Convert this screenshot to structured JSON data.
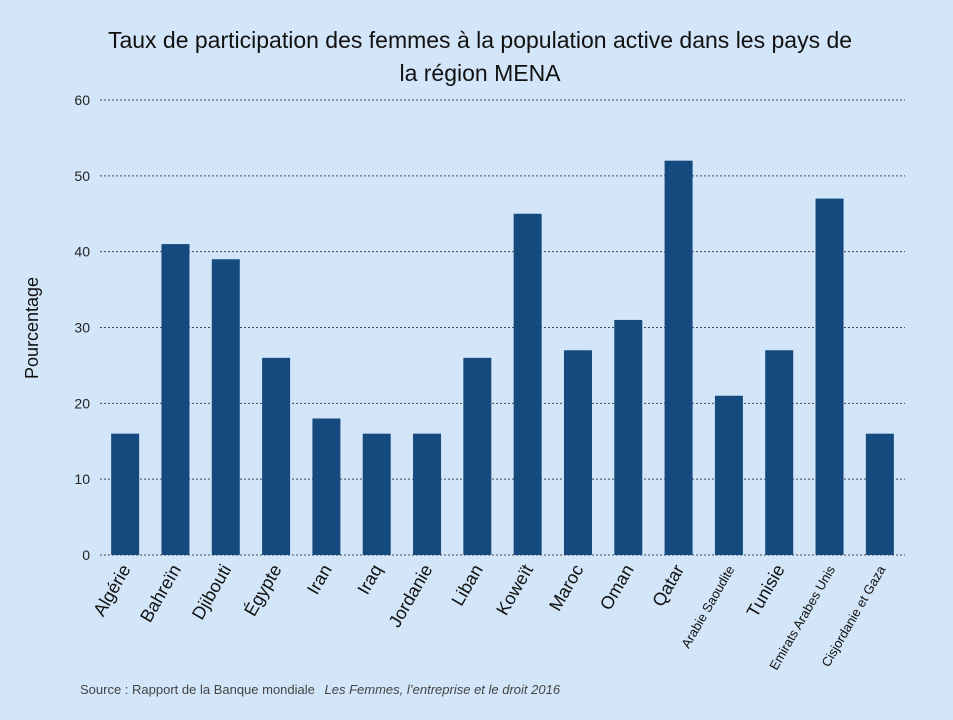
{
  "chart_data": {
    "type": "bar",
    "title_lines": [
      "Taux de participation des femmes à la population active dans les pays de",
      "la région MENA"
    ],
    "ylabel": "Pourcentage",
    "xlabel": "",
    "categories": [
      "Algérie",
      "Bahreïn",
      "Djibouti",
      "Égypte",
      "Iran",
      "Iraq",
      "Jordanie",
      "Liban",
      "Koweït",
      "Maroc",
      "Oman",
      "Qatar",
      "Arabie Saoudite",
      "Tunisie",
      "Emirats Arabes Unis",
      "Cisjordanie et Gaza"
    ],
    "values": [
      16,
      41,
      39,
      26,
      18,
      16,
      16,
      26,
      45,
      27,
      31,
      52,
      21,
      27,
      47,
      16
    ],
    "ylim": [
      0,
      60
    ],
    "yticks": [
      "0",
      "10",
      "20",
      "30",
      "40",
      "50",
      "60"
    ],
    "grid": true,
    "bar_color": "#154a7e",
    "background_color": "#d3e5f8"
  },
  "source": {
    "prefix": "Source : Rapport de la Banque mondiale",
    "publication": "Les Femmes, l’entreprise et le droit 2016"
  }
}
